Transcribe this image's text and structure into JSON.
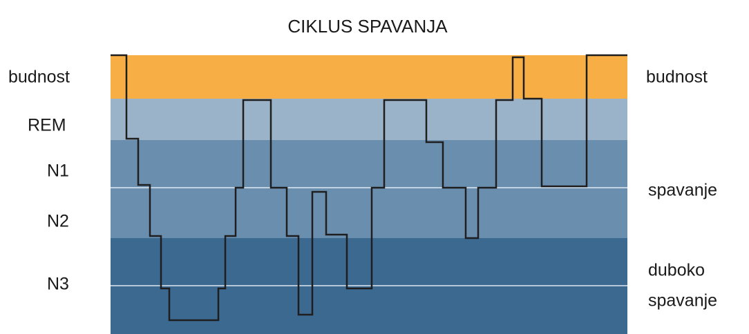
{
  "title": "CIKLUS SPAVANJA",
  "left_labels": [
    "budnost",
    "REM",
    "N1",
    "N2",
    "N3"
  ],
  "right_labels": {
    "wake": "budnost",
    "sleep": "spavanje",
    "deep_sleep": [
      "duboko",
      "spavanje"
    ]
  }
}
